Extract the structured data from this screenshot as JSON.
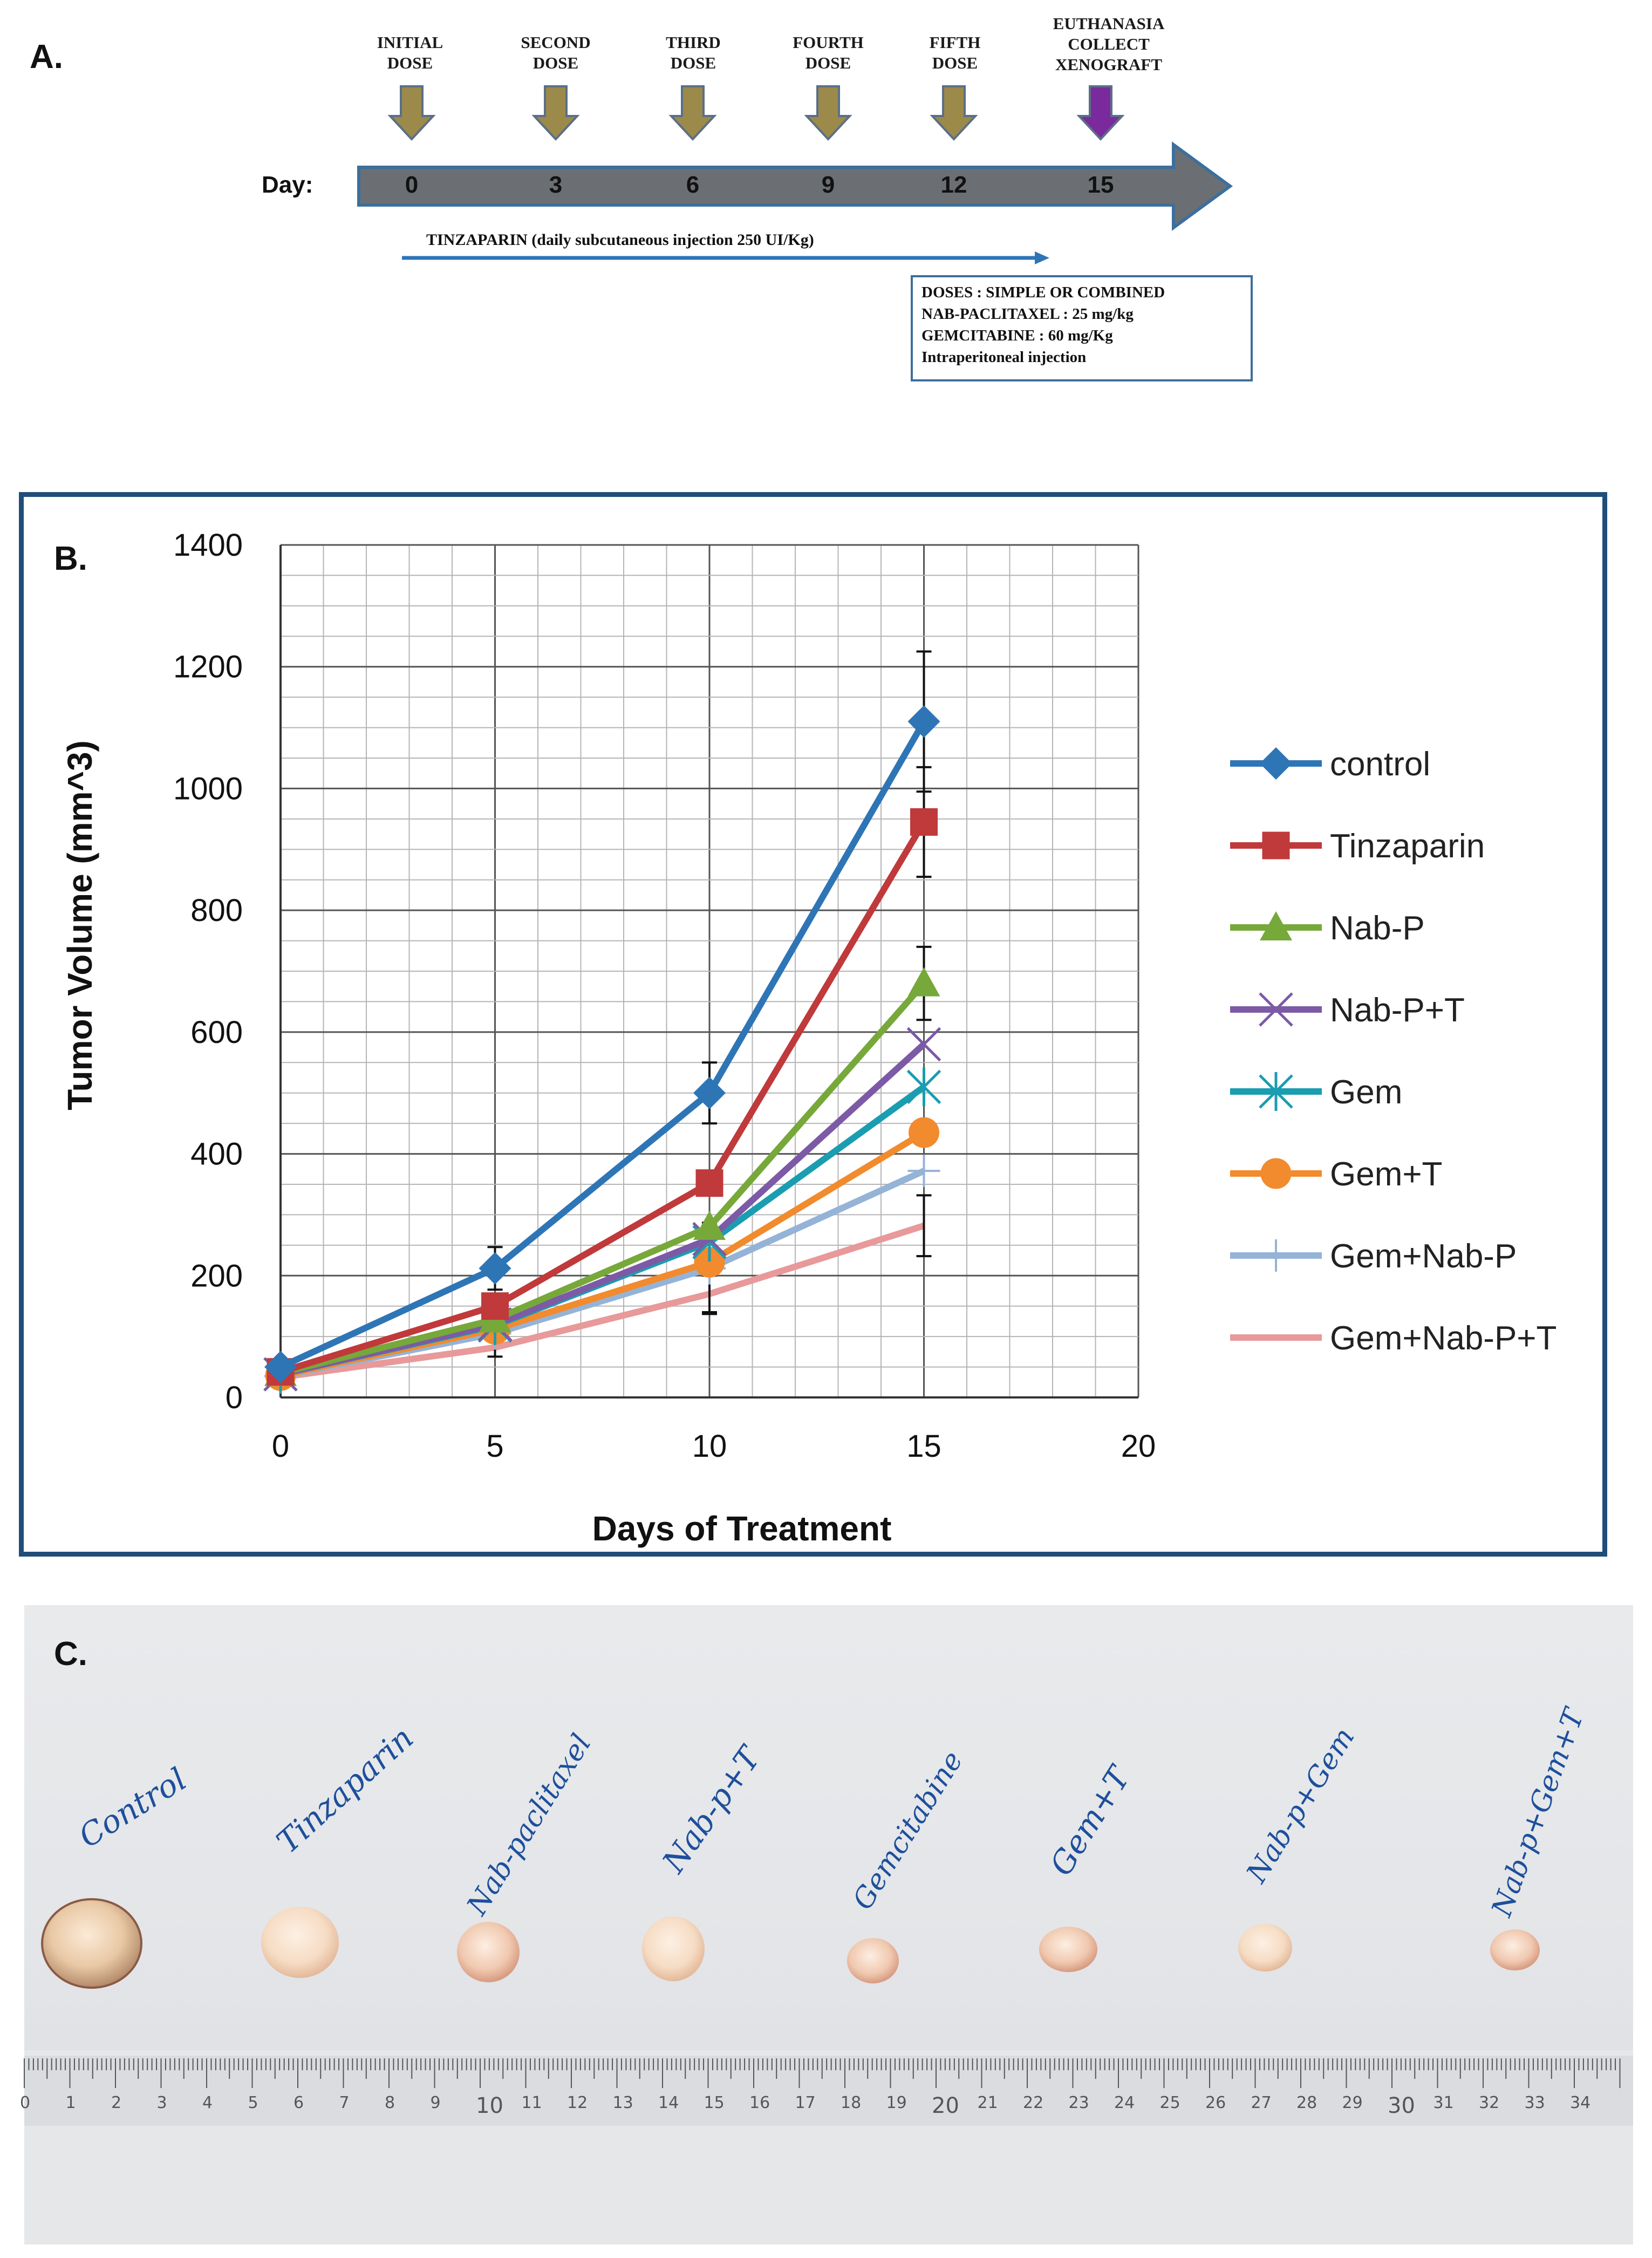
{
  "panel_a": {
    "letter": "A.",
    "dose_labels": [
      {
        "line1": "INITIAL",
        "line2": "DOSE"
      },
      {
        "line1": "SECOND",
        "line2": "DOSE"
      },
      {
        "line1": "THIRD",
        "line2": "DOSE"
      },
      {
        "line1": "FOURTH",
        "line2": "DOSE"
      },
      {
        "line1": "FIFTH",
        "line2": "DOSE"
      },
      {
        "line1": "EUTHANASIA",
        "line2": "COLLECT",
        "line3": "XENOGRAFT"
      }
    ],
    "day_label": "Day:",
    "days": [
      "0",
      "3",
      "6",
      "9",
      "12",
      "15"
    ],
    "tinzaparin_label": "TINZAPARIN (daily subcutaneous injection 250 UI/Kg)",
    "dose_box": [
      "DOSES : SIMPLE OR COMBINED",
      "NAB-PACLITAXEL : 25 mg/kg",
      "GEMCITABINE : 60 mg/Kg",
      "Intraperitoneal injection"
    ],
    "colors": {
      "dose_arrow": "#9c8a4a",
      "euthanasia_arrow": "#7a2a9c",
      "timeline": "#6b6f73",
      "timeline_border": "#3c6f9c"
    }
  },
  "panel_b": {
    "letter": "B."
  },
  "chart_data": {
    "type": "line",
    "title": "",
    "xlabel": "Days of Treatment",
    "ylabel": "Tumor  Volume (mm^3)",
    "xlim": [
      0,
      20
    ],
    "ylim": [
      0,
      1400
    ],
    "xticks": [
      "0",
      "5",
      "10",
      "15",
      "20"
    ],
    "yticks": [
      "0",
      "200",
      "400",
      "600",
      "800",
      "1000",
      "1200",
      "1400"
    ],
    "grid": true,
    "legend_position": "right",
    "x": [
      0,
      5,
      10,
      15
    ],
    "series": [
      {
        "name": "control",
        "values": [
          50,
          212,
          500,
          1110
        ],
        "color": "#2e75b6",
        "marker": "diamond",
        "err": [
          0,
          35,
          50,
          115
        ]
      },
      {
        "name": "Tinzaparin",
        "values": [
          42,
          150,
          352,
          945
        ],
        "color": "#c0393b",
        "marker": "square",
        "err": [
          0,
          0,
          0,
          90
        ]
      },
      {
        "name": "Nab-P",
        "values": [
          40,
          128,
          280,
          680
        ],
        "color": "#77a83a",
        "marker": "triangle",
        "err": [
          0,
          0,
          0,
          60
        ]
      },
      {
        "name": "Nab-P+T",
        "values": [
          38,
          120,
          260,
          580
        ],
        "color": "#7c5aa6",
        "marker": "x",
        "err": [
          0,
          0,
          0,
          0
        ]
      },
      {
        "name": "Gem",
        "values": [
          38,
          118,
          255,
          510
        ],
        "color": "#1a9db0",
        "marker": "asterisk",
        "err": [
          0,
          0,
          0,
          0
        ]
      },
      {
        "name": "Gem+T",
        "values": [
          36,
          112,
          222,
          435
        ],
        "color": "#f28a2e",
        "marker": "circle",
        "err": [
          0,
          0,
          0,
          0
        ]
      },
      {
        "name": "Gem+Nab-P",
        "values": [
          35,
          105,
          212,
          372
        ],
        "color": "#95b3d7",
        "marker": "plus",
        "err": [
          0,
          0,
          75,
          0
        ]
      },
      {
        "name": "Gem+Nab-P+T",
        "values": [
          33,
          82,
          170,
          282
        ],
        "color": "#e8999a",
        "marker": "none",
        "err": [
          0,
          15,
          30,
          50
        ]
      }
    ]
  },
  "panel_c": {
    "letter": "C.",
    "labels": [
      "Control",
      "Tinzaparin",
      "Nab-paclitaxel",
      "Nab-p+T",
      "Gemcitabine",
      "Gem+T",
      "Nab-p+Gem",
      "Nab-p+Gem+T"
    ],
    "ruler_numbers": [
      "0",
      "1",
      "2",
      "3",
      "4",
      "5",
      "6",
      "7",
      "8",
      "9",
      "10",
      "11",
      "12",
      "13",
      "14",
      "15",
      "16",
      "17",
      "18",
      "19",
      "20",
      "21",
      "22",
      "23",
      "24",
      "25",
      "26",
      "27",
      "28",
      "29",
      "30",
      "31",
      "32",
      "33",
      "34"
    ]
  }
}
